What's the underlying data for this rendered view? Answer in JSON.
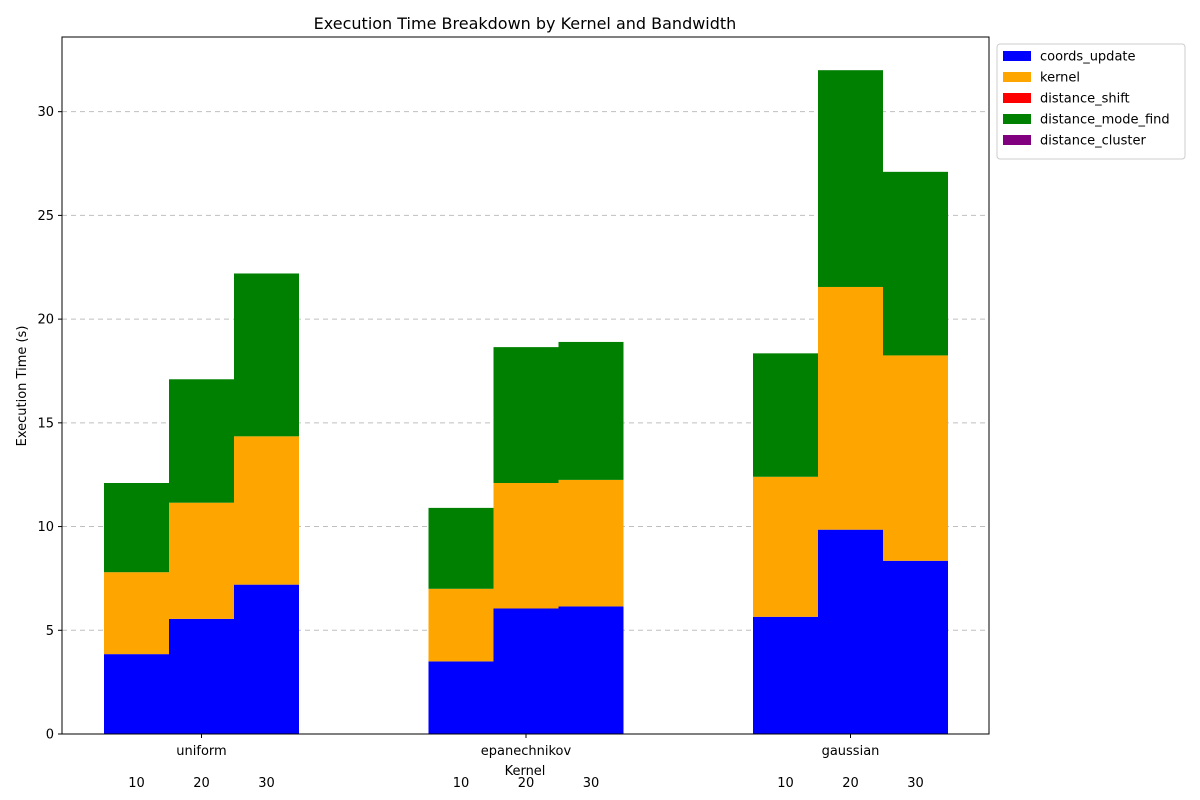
{
  "chart_data": {
    "type": "bar",
    "stacked": true,
    "title": "Execution Time Breakdown by Kernel and Bandwidth",
    "xlabel": "Kernel",
    "ylabel": "Execution Time (s)",
    "ylim": [
      0,
      33.6
    ],
    "yticks": [
      0,
      5,
      10,
      15,
      20,
      25,
      30
    ],
    "grid": "y-dashed",
    "legend_placement": "outside-top-right",
    "categories": [
      "uniform",
      "epanechnikov",
      "gaussian"
    ],
    "bandwidths": [
      "10",
      "20",
      "30"
    ],
    "series": [
      {
        "name": "coords_update",
        "color": "#0000ff",
        "values": [
          [
            3.85,
            5.55,
            7.2
          ],
          [
            3.5,
            6.05,
            6.15
          ],
          [
            5.65,
            9.85,
            8.35
          ]
        ]
      },
      {
        "name": "kernel",
        "color": "#ffa500",
        "values": [
          [
            3.95,
            5.6,
            7.15
          ],
          [
            3.5,
            6.05,
            6.1
          ],
          [
            6.75,
            11.7,
            9.9
          ]
        ]
      },
      {
        "name": "distance_shift",
        "color": "#ff0000",
        "values": [
          [
            0,
            0,
            0
          ],
          [
            0,
            0,
            0
          ],
          [
            0,
            0,
            0
          ]
        ]
      },
      {
        "name": "distance_mode_find",
        "color": "#008000",
        "values": [
          [
            4.3,
            5.95,
            7.85
          ],
          [
            3.9,
            6.55,
            6.65
          ],
          [
            5.95,
            10.45,
            8.85
          ]
        ]
      },
      {
        "name": "distance_cluster",
        "color": "#800080",
        "values": [
          [
            0,
            0,
            0
          ],
          [
            0,
            0,
            0
          ],
          [
            0,
            0,
            0
          ]
        ]
      }
    ]
  }
}
